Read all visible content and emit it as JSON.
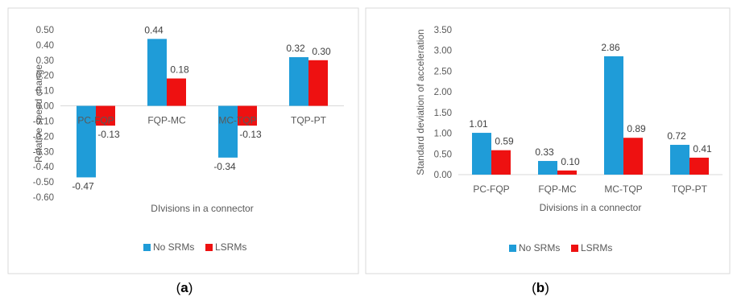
{
  "chart_data": [
    {
      "id": "a",
      "type": "bar",
      "panel_label": "a",
      "xlabel": "DIvisions in a connector",
      "ylabel": "Relative speed change",
      "ylim": [
        -0.6,
        0.5
      ],
      "ytick_step": 0.1,
      "ytick_decimals": 2,
      "categories": [
        "PC-FQP",
        "FQP-MC",
        "MC-TQP",
        "TQP-PT"
      ],
      "series": [
        {
          "name": "No SRMs",
          "color": "#1f9cd8",
          "values": [
            -0.47,
            0.44,
            -0.34,
            0.32
          ]
        },
        {
          "name": "LSRMs",
          "color": "#ee1111",
          "values": [
            -0.13,
            0.18,
            -0.13,
            0.3
          ]
        }
      ],
      "legend_position": "bottom"
    },
    {
      "id": "b",
      "type": "bar",
      "panel_label": "b",
      "xlabel": "Divisions in a connector",
      "ylabel": "Standard deviation of  acceleration",
      "ylim": [
        0,
        3.5
      ],
      "ytick_step": 0.5,
      "ytick_decimals": 2,
      "categories": [
        "PC-FQP",
        "FQP-MC",
        "MC-TQP",
        "TQP-PT"
      ],
      "series": [
        {
          "name": "No SRMs",
          "color": "#1f9cd8",
          "values": [
            1.01,
            0.33,
            2.86,
            0.72
          ]
        },
        {
          "name": "LSRMs",
          "color": "#ee1111",
          "values": [
            0.59,
            0.1,
            0.89,
            0.41
          ]
        }
      ],
      "legend_position": "bottom"
    }
  ]
}
